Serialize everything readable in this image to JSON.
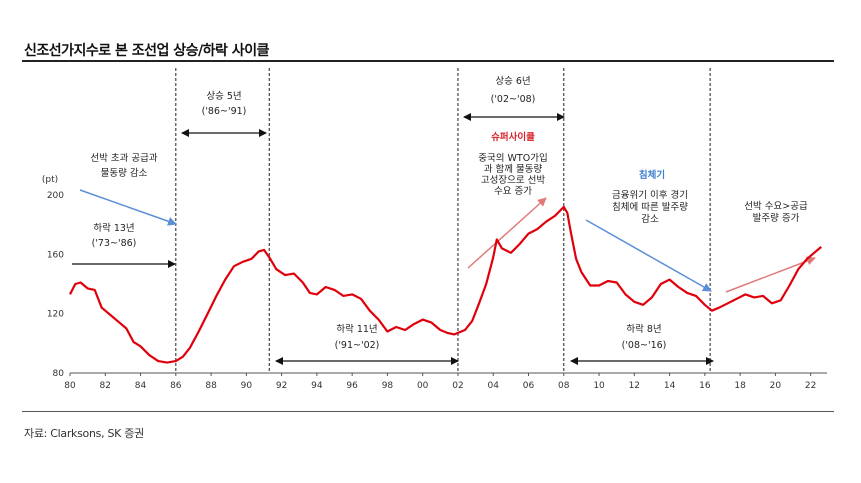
{
  "page": {
    "title": "신조선가지수로 본 조선업 상승/하락 사이클",
    "source": "자료: Clarksons, SK 증권"
  },
  "chart_data": {
    "type": "line",
    "unit_label": "(pt)",
    "xlim": [
      1980,
      2022.7
    ],
    "ylim": [
      80,
      200
    ],
    "yticks": [
      80,
      120,
      160,
      200
    ],
    "xticks": [
      {
        "v": 1980,
        "label": "80"
      },
      {
        "v": 1982,
        "label": "82"
      },
      {
        "v": 1984,
        "label": "84"
      },
      {
        "v": 1986,
        "label": "86"
      },
      {
        "v": 1988,
        "label": "88"
      },
      {
        "v": 1990,
        "label": "90"
      },
      {
        "v": 1992,
        "label": "92"
      },
      {
        "v": 1994,
        "label": "94"
      },
      {
        "v": 1996,
        "label": "96"
      },
      {
        "v": 1998,
        "label": "98"
      },
      {
        "v": 2000,
        "label": "00"
      },
      {
        "v": 2002,
        "label": "02"
      },
      {
        "v": 2004,
        "label": "04"
      },
      {
        "v": 2006,
        "label": "06"
      },
      {
        "v": 2008,
        "label": "08"
      },
      {
        "v": 2010,
        "label": "10"
      },
      {
        "v": 2012,
        "label": "12"
      },
      {
        "v": 2014,
        "label": "14"
      },
      {
        "v": 2016,
        "label": "16"
      },
      {
        "v": 2018,
        "label": "18"
      },
      {
        "v": 2020,
        "label": "20"
      },
      {
        "v": 2022,
        "label": "22"
      }
    ],
    "line_color": "#e0000b",
    "series": [
      {
        "x": [
          1980,
          1980.3,
          1980.6,
          1981,
          1981.4,
          1981.8,
          1982.3,
          1982.8,
          1983.2,
          1983.6,
          1984,
          1984.5,
          1985,
          1985.5,
          1986,
          1986.4,
          1986.8,
          1987.3,
          1987.8,
          1988.3,
          1988.8,
          1989.3,
          1989.8,
          1990.3,
          1990.7,
          1991,
          1991.3,
          1991.7,
          1992.2,
          1992.7,
          1993.2,
          1993.6,
          1994,
          1994.5,
          1995,
          1995.5,
          1996,
          1996.5,
          1997,
          1997.5,
          1998,
          1998.5,
          1999,
          1999.5,
          2000,
          2000.5,
          2001,
          2001.4,
          2001.8,
          2002,
          2002.4,
          2002.8,
          2003.2,
          2003.6,
          2004,
          2004.2,
          2004.5,
          2005,
          2005.5,
          2006,
          2006.5,
          2007,
          2007.5,
          2008,
          2008.2,
          2008.4,
          2008.7,
          2009,
          2009.5,
          2010,
          2010.5,
          2011,
          2011.5,
          2012,
          2012.5,
          2013,
          2013.5,
          2014,
          2014.5,
          2015,
          2015.5,
          2016,
          2016.4,
          2016.8,
          2017.3,
          2017.8,
          2018.3,
          2018.8,
          2019.3,
          2019.8,
          2020.3,
          2020.8,
          2021.3,
          2021.8,
          2022.2,
          2022.6
        ],
        "y": [
          133,
          140,
          141,
          137,
          136,
          124,
          119,
          114,
          110,
          101,
          98,
          92,
          88,
          87,
          88,
          91,
          97,
          108,
          120,
          132,
          143,
          152,
          155,
          157,
          162,
          163,
          158,
          150,
          146,
          147,
          141,
          134,
          133,
          138,
          136,
          132,
          133,
          130,
          122,
          116,
          108,
          111,
          109,
          113,
          116,
          114,
          109,
          107,
          106,
          107,
          109,
          115,
          127,
          140,
          158,
          170,
          164,
          161,
          167,
          174,
          177,
          182,
          186,
          192,
          188,
          175,
          157,
          148,
          139,
          139,
          142,
          141,
          133,
          128,
          126,
          131,
          140,
          143,
          138,
          134,
          132,
          126,
          122,
          124,
          127,
          130,
          133,
          131,
          132,
          127,
          129,
          139,
          150,
          157,
          161,
          165
        ]
      }
    ],
    "cycle_lines": [
      1986,
      1991.3,
      2002,
      2008,
      2016.3
    ],
    "cycle_annotations": [
      {
        "line1": "상승 5년",
        "line2": "('86~'91)"
      },
      {
        "line1": "하락 13년",
        "line2": "('73~'86)"
      },
      {
        "line1": "하락 11년",
        "line2": "('91~'02)"
      },
      {
        "line1": "상승 6년",
        "line2": "('02~'08)"
      },
      {
        "line1": "하락 8년",
        "line2": "('08~'16)"
      }
    ],
    "notes": {
      "oversupply": [
        "선박 초과 공급과",
        "물동량 감소"
      ],
      "super_cycle_title": "슈퍼사이클",
      "super_cycle": [
        "중국의 WTO가입",
        "과 함께 물동량",
        "고성장으로 선박",
        "수요 증가"
      ],
      "stagnation_title": "침체기",
      "stagnation": [
        "금융위기 이후 경기",
        "침체에 따른 발주량",
        "감소"
      ],
      "recovery": [
        "선박 수요>공급",
        "발주량 증가"
      ]
    }
  }
}
